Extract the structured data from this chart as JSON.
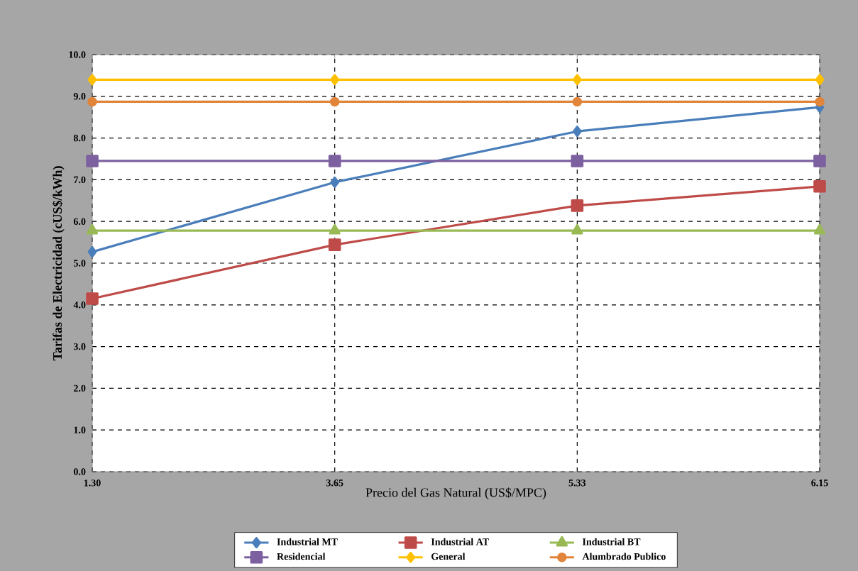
{
  "chart_data": {
    "type": "line",
    "xlabel": "Precio del Gas Natural (US$/MPC)",
    "ylabel": "Tarifas de Electricidad (cUS$/kWh)",
    "categories": [
      "1.30",
      "3.65",
      "5.33",
      "6.15"
    ],
    "ylim": [
      0,
      10
    ],
    "yticks": [
      {
        "value": 0,
        "label": "0.0"
      },
      {
        "value": 1,
        "label": "1.0"
      },
      {
        "value": 2,
        "label": "2.0"
      },
      {
        "value": 3,
        "label": "3.0"
      },
      {
        "value": 4,
        "label": "4.0"
      },
      {
        "value": 5,
        "label": "5.0"
      },
      {
        "value": 6,
        "label": "6.0"
      },
      {
        "value": 7,
        "label": "7.0"
      },
      {
        "value": 8,
        "label": "8.0"
      },
      {
        "value": 9,
        "label": "9.0"
      },
      {
        "value": 10,
        "label": "10.0"
      }
    ],
    "grid": true,
    "legend": "bottom",
    "line_style": "solid",
    "series": [
      {
        "name": "Industrial MT",
        "color": "#4a7ebb",
        "marker": "diamond",
        "values": [
          5.27,
          6.94,
          8.16,
          8.74
        ]
      },
      {
        "name": "Industrial AT",
        "color": "#be4b48",
        "marker": "square",
        "values": [
          4.15,
          5.44,
          6.38,
          6.84
        ]
      },
      {
        "name": "Industrial BT",
        "color": "#98b954",
        "marker": "triangle",
        "values": [
          5.78,
          5.78,
          5.78,
          5.78
        ]
      },
      {
        "name": "Residencial",
        "color": "#7d60a0",
        "marker": "square",
        "values": [
          7.45,
          7.45,
          7.45,
          7.45
        ]
      },
      {
        "name": "General",
        "color": "#ffc000",
        "marker": "diamond",
        "values": [
          9.4,
          9.4,
          9.4,
          9.4
        ]
      },
      {
        "name": "Alumbrado Publico",
        "color": "#e0853a",
        "marker": "circle",
        "values": [
          8.87,
          8.87,
          8.87,
          8.87
        ]
      }
    ]
  }
}
